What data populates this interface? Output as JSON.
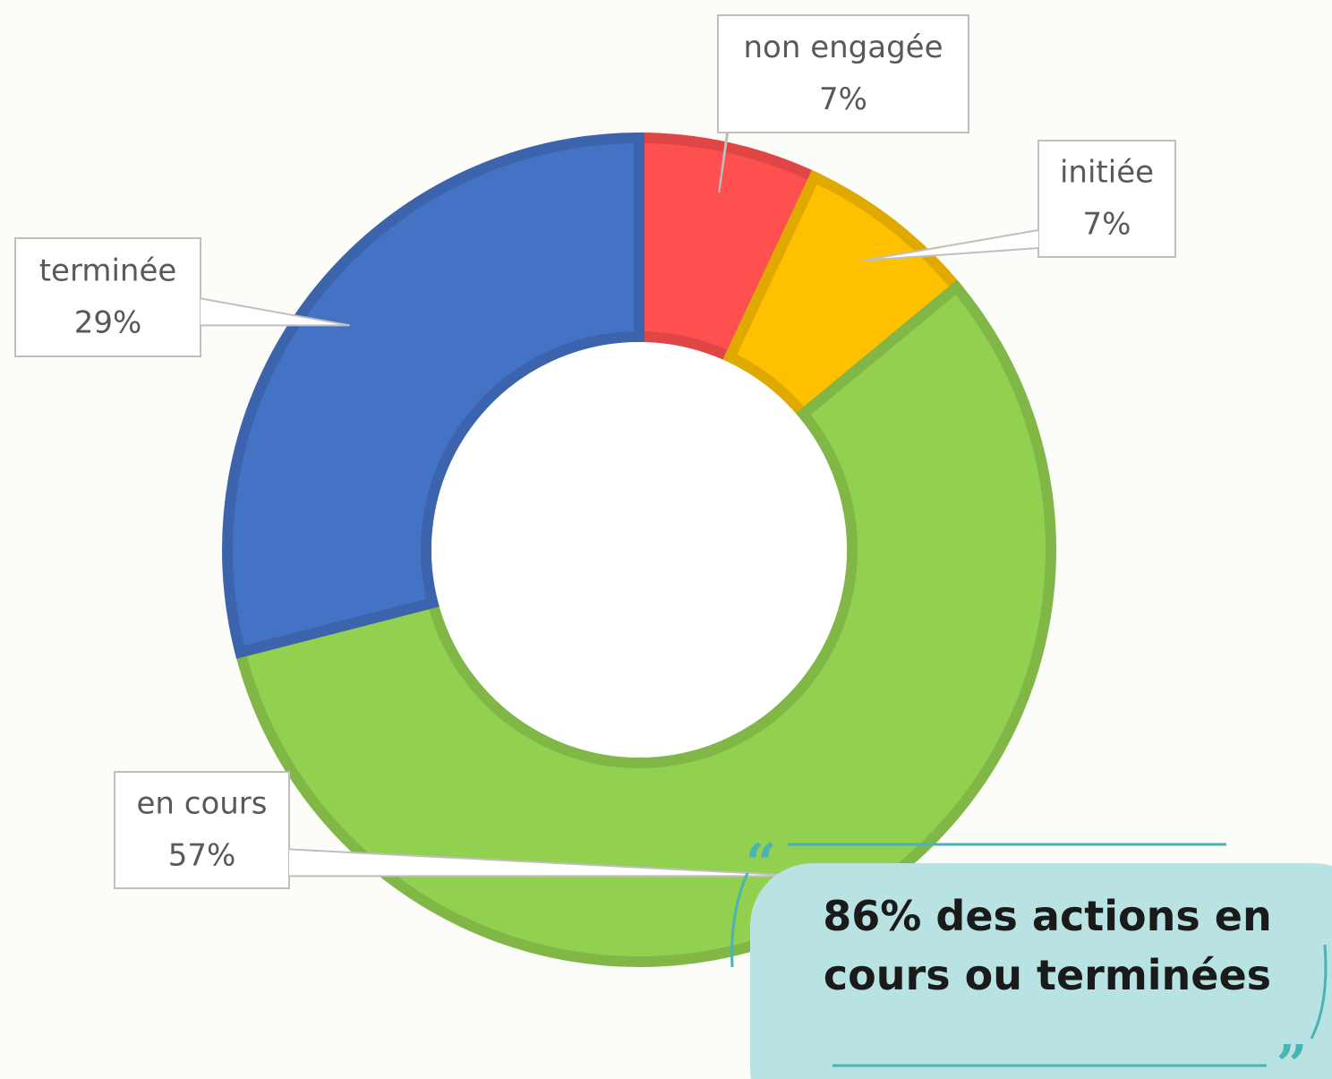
{
  "chart_data": {
    "type": "donut",
    "categories": [
      "non engagée",
      "initiée",
      "en cours",
      "terminée"
    ],
    "values": [
      7,
      7,
      57,
      29
    ],
    "value_labels": [
      "7%",
      "7%",
      "57%",
      "29%"
    ],
    "colors": [
      "#ff5050",
      "#ffc000",
      "#92d050",
      "#4472c4"
    ],
    "annotation": "86% des actions en cours ou terminées"
  }
}
